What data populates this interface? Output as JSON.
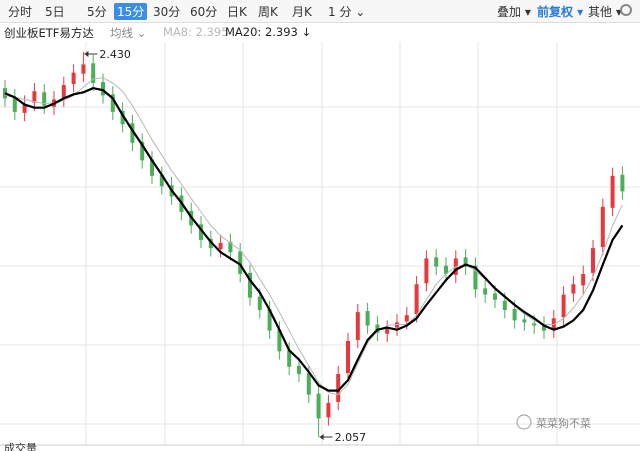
{
  "toolbar": {
    "periods": [
      "分时",
      "5日",
      "5分",
      "15分",
      "30分",
      "60分",
      "日K",
      "周K",
      "月K",
      "1 分 ⌄"
    ],
    "menus": [
      "叠加 ▾",
      "前复权 ▾",
      "其他 ▾"
    ]
  },
  "ma_menu": "均线 ⌄",
  "footer": "成交量",
  "watermark": "菜菜狗不菜",
  "chart_data": {
    "type": "candlestick",
    "title": "创业板ETF易方达",
    "up_color": "#e8383d",
    "down_color": "#4cae5a",
    "open": [
      2.395,
      2.386,
      2.371,
      2.381,
      2.391,
      2.377,
      2.385,
      2.399,
      2.409,
      2.419,
      2.401,
      2.389,
      2.373,
      2.361,
      2.343,
      2.326,
      2.311,
      2.301,
      2.291,
      2.276,
      2.263,
      2.249,
      2.239,
      2.246,
      2.237,
      2.216,
      2.193,
      2.181,
      2.161,
      2.141,
      2.126,
      2.119,
      2.099,
      2.076,
      2.091,
      2.119,
      2.151,
      2.179,
      2.166,
      2.157,
      2.163,
      2.169,
      2.176,
      2.206,
      2.231,
      2.223,
      2.214,
      2.231,
      2.223,
      2.201,
      2.196,
      2.189,
      2.181,
      2.171,
      2.167,
      2.166,
      2.161,
      2.173,
      2.196,
      2.204,
      2.216,
      2.241,
      2.279,
      2.311
    ],
    "high": [
      2.403,
      2.394,
      2.388,
      2.4,
      2.399,
      2.392,
      2.406,
      2.418,
      2.43,
      2.427,
      2.409,
      2.397,
      2.381,
      2.369,
      2.351,
      2.334,
      2.319,
      2.309,
      2.299,
      2.284,
      2.271,
      2.257,
      2.253,
      2.254,
      2.245,
      2.224,
      2.201,
      2.189,
      2.169,
      2.149,
      2.134,
      2.127,
      2.107,
      2.098,
      2.126,
      2.158,
      2.186,
      2.187,
      2.174,
      2.17,
      2.176,
      2.183,
      2.213,
      2.238,
      2.239,
      2.231,
      2.238,
      2.239,
      2.231,
      2.209,
      2.204,
      2.197,
      2.189,
      2.179,
      2.175,
      2.174,
      2.18,
      2.203,
      2.213,
      2.223,
      2.248,
      2.288,
      2.318,
      2.319
    ],
    "low": [
      2.377,
      2.364,
      2.363,
      2.373,
      2.37,
      2.369,
      2.377,
      2.391,
      2.401,
      2.392,
      2.38,
      2.364,
      2.352,
      2.334,
      2.317,
      2.302,
      2.292,
      2.282,
      2.267,
      2.254,
      2.24,
      2.232,
      2.231,
      2.228,
      2.207,
      2.184,
      2.172,
      2.152,
      2.132,
      2.117,
      2.11,
      2.09,
      2.057,
      2.068,
      2.083,
      2.111,
      2.143,
      2.157,
      2.15,
      2.149,
      2.155,
      2.161,
      2.168,
      2.198,
      2.214,
      2.207,
      2.206,
      2.214,
      2.192,
      2.187,
      2.182,
      2.172,
      2.162,
      2.16,
      2.157,
      2.152,
      2.153,
      2.165,
      2.188,
      2.196,
      2.208,
      2.233,
      2.271,
      2.287
    ],
    "close": [
      2.385,
      2.372,
      2.38,
      2.392,
      2.378,
      2.384,
      2.398,
      2.41,
      2.418,
      2.4,
      2.388,
      2.372,
      2.36,
      2.342,
      2.325,
      2.31,
      2.3,
      2.29,
      2.275,
      2.262,
      2.248,
      2.24,
      2.245,
      2.236,
      2.215,
      2.192,
      2.18,
      2.16,
      2.14,
      2.125,
      2.118,
      2.098,
      2.075,
      2.09,
      2.118,
      2.15,
      2.178,
      2.165,
      2.158,
      2.162,
      2.168,
      2.175,
      2.205,
      2.23,
      2.222,
      2.215,
      2.23,
      2.222,
      2.2,
      2.195,
      2.19,
      2.18,
      2.17,
      2.168,
      2.165,
      2.16,
      2.172,
      2.195,
      2.205,
      2.215,
      2.24,
      2.28,
      2.31,
      2.295
    ],
    "series": [
      {
        "name": "MA8: 2.395",
        "color": "#b8b8b8",
        "values": [
          2.388,
          2.386,
          2.384,
          2.382,
          2.38,
          2.381,
          2.383,
          2.388,
          2.396,
          2.404,
          2.405,
          2.4,
          2.392,
          2.378,
          2.362,
          2.345,
          2.33,
          2.315,
          2.302,
          2.288,
          2.275,
          2.262,
          2.252,
          2.245,
          2.238,
          2.226,
          2.21,
          2.195,
          2.178,
          2.16,
          2.142,
          2.126,
          2.11,
          2.1,
          2.098,
          2.108,
          2.128,
          2.148,
          2.16,
          2.165,
          2.166,
          2.166,
          2.175,
          2.19,
          2.205,
          2.215,
          2.222,
          2.224,
          2.218,
          2.21,
          2.202,
          2.192,
          2.184,
          2.176,
          2.17,
          2.166,
          2.166,
          2.172,
          2.182,
          2.195,
          2.212,
          2.235,
          2.262,
          2.282
        ]
      },
      {
        "name": "MA20: 2.393 ↓",
        "color": "#000000",
        "values": [
          2.39,
          2.386,
          2.379,
          2.376,
          2.376,
          2.38,
          2.385,
          2.389,
          2.391,
          2.395,
          2.393,
          2.385,
          2.369,
          2.354,
          2.34,
          2.325,
          2.311,
          2.296,
          2.284,
          2.27,
          2.258,
          2.246,
          2.236,
          2.23,
          2.224,
          2.209,
          2.197,
          2.18,
          2.161,
          2.141,
          2.132,
          2.12,
          2.107,
          2.102,
          2.102,
          2.112,
          2.132,
          2.151,
          2.161,
          2.163,
          2.161,
          2.165,
          2.172,
          2.185,
          2.197,
          2.209,
          2.219,
          2.224,
          2.221,
          2.211,
          2.201,
          2.193,
          2.185,
          2.178,
          2.172,
          2.165,
          2.161,
          2.164,
          2.17,
          2.18,
          2.199,
          2.224,
          2.248,
          2.262
        ]
      }
    ],
    "annotations": [
      {
        "value": 2.43,
        "label": "2.430"
      },
      {
        "value": 2.057,
        "label": "2.057"
      }
    ]
  }
}
